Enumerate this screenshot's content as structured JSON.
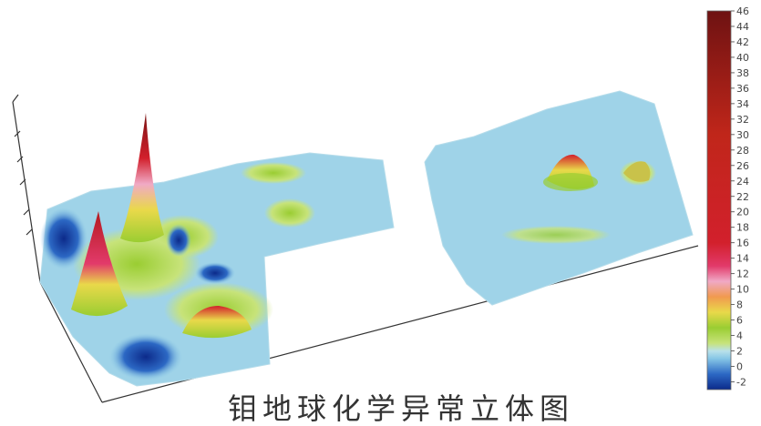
{
  "chart_data": {
    "type": "3d-surface",
    "title": "钼地球化学异常立体图",
    "colorbar": {
      "ticks": [
        "46",
        "44",
        "42",
        "40",
        "38",
        "36",
        "34",
        "32",
        "30",
        "28",
        "26",
        "24",
        "22",
        "20",
        "18",
        "16",
        "14",
        "12",
        "10",
        "8",
        "6",
        "4",
        "2",
        "0",
        "-2"
      ],
      "vmin": -3,
      "vmax": 46,
      "color_stops": [
        {
          "value": -3,
          "color": "#0c2a8a"
        },
        {
          "value": -1,
          "color": "#2c68c4"
        },
        {
          "value": 1,
          "color": "#86c6e6"
        },
        {
          "value": 2,
          "color": "#b9e1ea"
        },
        {
          "value": 3,
          "color": "#c7e37a"
        },
        {
          "value": 5,
          "color": "#9acd32"
        },
        {
          "value": 7,
          "color": "#e9d94a"
        },
        {
          "value": 9,
          "color": "#f19a4f"
        },
        {
          "value": 11,
          "color": "#f0a9c5"
        },
        {
          "value": 13,
          "color": "#e23a6a"
        },
        {
          "value": 16,
          "color": "#d2202c"
        },
        {
          "value": 30,
          "color": "#c0261a"
        },
        {
          "value": 46,
          "color": "#6e1212"
        }
      ]
    },
    "anomaly_peaks_approx": [
      {
        "location": "left block, rear",
        "value": 46
      },
      {
        "location": "left block, front",
        "value": 30
      },
      {
        "location": "right block, centre",
        "value": 10
      }
    ]
  }
}
